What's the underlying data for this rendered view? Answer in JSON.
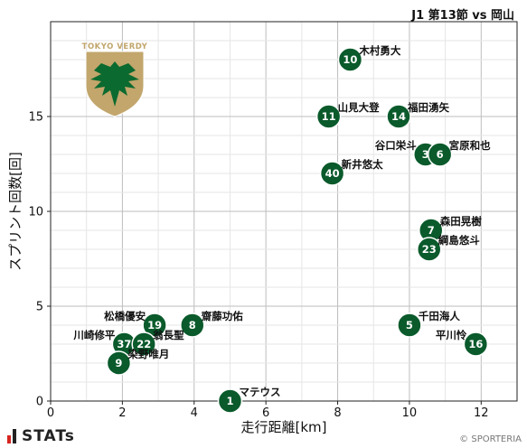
{
  "title": "J1 第13節 vs 岡山",
  "credit": "© SPORTERIA",
  "stats_logo_text": "STATs",
  "team_emblem_text": "TOKYO VERDY",
  "colors": {
    "marker": "#0a5a2b",
    "marker_edge": "#ffffff",
    "grid": "#cfcfcf",
    "emblem_gold": "#c2a66c",
    "emblem_green": "#0b6a2f"
  },
  "chart_data": {
    "type": "scatter",
    "xlabel": "走行距離[km]",
    "ylabel": "スプリント回数[回]",
    "xlim": [
      0,
      13
    ],
    "ylim": [
      0,
      20
    ],
    "xticks": [
      0,
      2,
      4,
      6,
      8,
      10,
      12
    ],
    "yticks": [
      0,
      5,
      10,
      15
    ],
    "grid": true,
    "points": [
      {
        "number": "1",
        "name": "マテウス",
        "x": 5.0,
        "y": 0,
        "label_pos": "right"
      },
      {
        "number": "10",
        "name": "木村勇大",
        "x": 8.35,
        "y": 18,
        "label_pos": "right"
      },
      {
        "number": "11",
        "name": "山見大登",
        "x": 7.75,
        "y": 15,
        "label_pos": "right"
      },
      {
        "number": "14",
        "name": "福田湧矢",
        "x": 9.7,
        "y": 15,
        "label_pos": "right"
      },
      {
        "number": "3",
        "name": "谷口栄斗",
        "x": 10.45,
        "y": 13,
        "label_pos": "left"
      },
      {
        "number": "6",
        "name": "宮原和也",
        "x": 10.85,
        "y": 13,
        "label_pos": "right"
      },
      {
        "number": "40",
        "name": "新井悠太",
        "x": 7.85,
        "y": 12,
        "label_pos": "right"
      },
      {
        "number": "7",
        "name": "森田晃樹",
        "x": 10.6,
        "y": 9,
        "label_pos": "right"
      },
      {
        "number": "23",
        "name": "綱島悠斗",
        "x": 10.55,
        "y": 8,
        "label_pos": "right"
      },
      {
        "number": "5",
        "name": "千田海人",
        "x": 10.0,
        "y": 4,
        "label_pos": "right"
      },
      {
        "number": "16",
        "name": "平川怜",
        "x": 11.85,
        "y": 3,
        "label_pos": "left"
      },
      {
        "number": "8",
        "name": "齋藤功佑",
        "x": 3.95,
        "y": 4,
        "label_pos": "right"
      },
      {
        "number": "19",
        "name": "松橋優安",
        "x": 2.9,
        "y": 4,
        "label_pos": "left"
      },
      {
        "number": "37",
        "name": "川崎修平",
        "x": 2.05,
        "y": 3,
        "label_pos": "left"
      },
      {
        "number": "22",
        "name": "翁長聖",
        "x": 2.6,
        "y": 3,
        "label_pos": "right"
      },
      {
        "number": "9",
        "name": "染野唯月",
        "x": 1.9,
        "y": 2,
        "label_pos": "right"
      }
    ]
  }
}
